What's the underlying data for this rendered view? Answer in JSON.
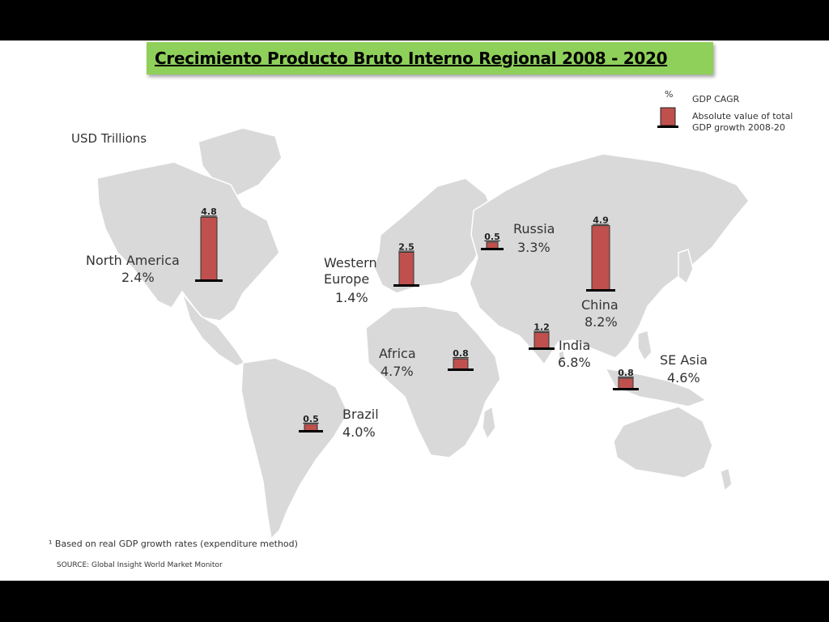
{
  "title": "Crecimiento Producto Bruto Interno Regional 2008 - 2020",
  "unit_label": "USD Trillions",
  "legend": {
    "pct_symbol": "%",
    "cagr_label": "GDP CAGR",
    "abs_label": "Absolute value of total GDP growth 2008-20",
    "bar_color": "#c0504d"
  },
  "footnote": "¹ Based on real GDP growth rates (expenditure method)",
  "source": "SOURCE: Global Insight World Market Monitor",
  "colors": {
    "land": "#d9d9d9",
    "bar": "#c0504d",
    "title_bg": "#8fd05a"
  },
  "chart_data": {
    "type": "bar",
    "title": "Crecimiento Producto Bruto Interno Regional 2008 - 2020",
    "unit": "USD Trillions",
    "categories": [
      "North America",
      "Western Europe",
      "Russia",
      "China",
      "India",
      "Africa",
      "SE Asia",
      "Brazil"
    ],
    "series": [
      {
        "name": "Absolute value of total GDP growth 2008-20",
        "values": [
          4.8,
          2.5,
          0.5,
          4.9,
          1.2,
          0.8,
          0.8,
          0.5
        ]
      },
      {
        "name": "GDP CAGR",
        "values": [
          "2.4%",
          "1.4%",
          "3.3%",
          "8.2%",
          "6.8%",
          "4.7%",
          "4.6%",
          "4.0%"
        ]
      }
    ]
  },
  "regions": [
    {
      "name": "North America",
      "value": "4.8",
      "cagr": "2.4%"
    },
    {
      "name": "Western Europe",
      "value": "2.5",
      "cagr": "1.4%"
    },
    {
      "name": "Russia",
      "value": "0.5",
      "cagr": "3.3%"
    },
    {
      "name": "China",
      "value": "4.9",
      "cagr": "8.2%"
    },
    {
      "name": "India",
      "value": "1.2",
      "cagr": "6.8%"
    },
    {
      "name": "Africa",
      "value": "0.8",
      "cagr": "4.7%"
    },
    {
      "name": "SE Asia",
      "value": "0.8",
      "cagr": "4.6%"
    },
    {
      "name": "Brazil",
      "value": "0.5",
      "cagr": "4.0%"
    }
  ]
}
